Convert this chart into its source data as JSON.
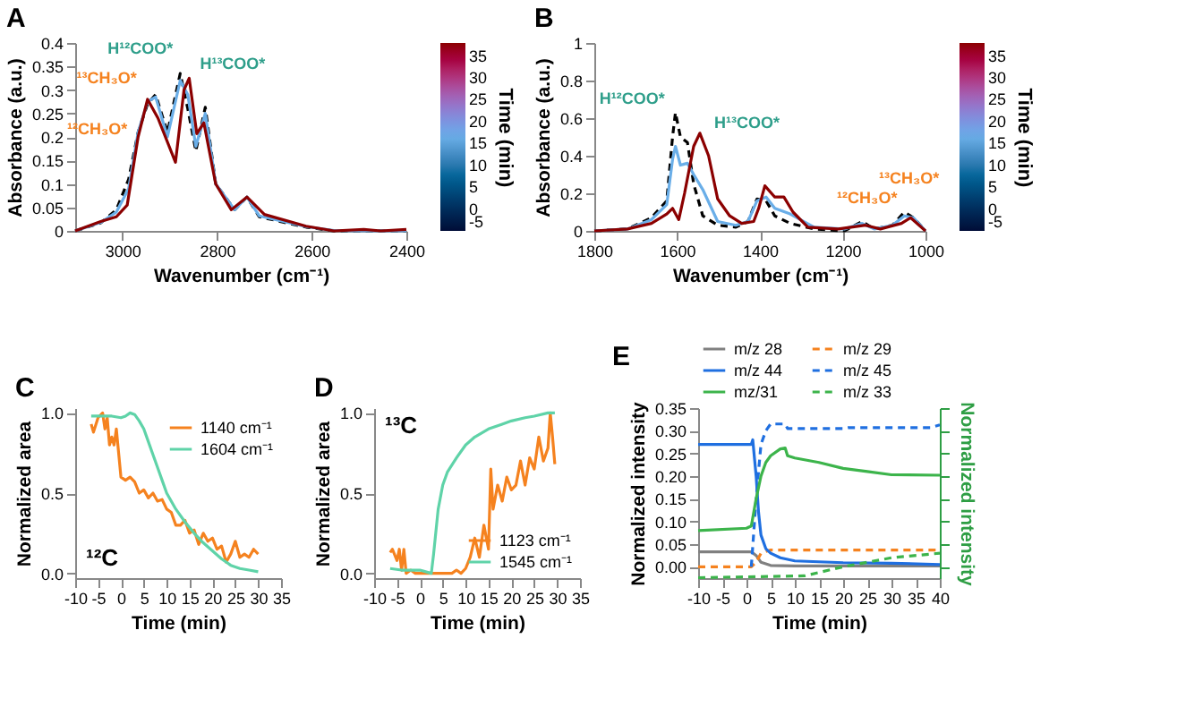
{
  "chart_data": [
    {
      "type": "line",
      "title": "A",
      "xlabel": "Wavenumber (cm⁻¹)",
      "ylabel": "Absorbance (a.u.)",
      "clabel": "Time (min)",
      "clim": [
        -5,
        38
      ],
      "cticks": [
        -5,
        0,
        5,
        10,
        15,
        20,
        25,
        30,
        35
      ],
      "xlim": [
        3100,
        2400
      ],
      "xticks": [
        3000,
        2800,
        2600,
        2400
      ],
      "ylim": [
        0,
        0.4
      ],
      "yticks": [
        0,
        0.05,
        0.1,
        0.15,
        0.2,
        0.25,
        0.3,
        0.35,
        0.4
      ],
      "grid": false,
      "annotations": [
        {
          "text": "¹²CH₃O*",
          "x": 2967,
          "y": 0.21
        },
        {
          "text": "¹³CH₃O*",
          "x": 2947,
          "y": 0.28
        },
        {
          "text": "H¹²COO*",
          "x": 2878,
          "y": 0.335
        },
        {
          "text": "H¹³COO*",
          "x": 2859,
          "y": 0.325
        }
      ],
      "series": [
        {
          "color": "#000000",
          "line_style": "dashed",
          "x": [
            3100,
            3046,
            3013,
            2987,
            2967,
            2947,
            2930,
            2905,
            2878,
            2862,
            2845,
            2825,
            2803,
            2763,
            2737,
            2711,
            2612,
            2553,
            2507,
            2454,
            2400
          ],
          "values": [
            0,
            0.017,
            0.045,
            0.11,
            0.21,
            0.27,
            0.29,
            0.21,
            0.335,
            0.26,
            0.17,
            0.263,
            0.1,
            0.045,
            0.072,
            0.03,
            0.008,
            0,
            0,
            0,
            0
          ]
        },
        {
          "color": "#6aaee8",
          "x": [
            3100,
            3046,
            3013,
            2987,
            2967,
            2947,
            2930,
            2905,
            2878,
            2862,
            2845,
            2825,
            2803,
            2763,
            2737,
            2711,
            2612,
            2553,
            2507,
            2454,
            2400
          ],
          "values": [
            0,
            0.018,
            0.04,
            0.09,
            0.21,
            0.275,
            0.285,
            0.2,
            0.32,
            0.29,
            0.18,
            0.25,
            0.1,
            0.045,
            0.072,
            0.032,
            0.009,
            0.001,
            0,
            0,
            0
          ]
        },
        {
          "color": "#8b0000",
          "x": [
            3100,
            3046,
            3013,
            2990,
            2967,
            2947,
            2925,
            2888,
            2870,
            2859,
            2843,
            2828,
            2803,
            2770,
            2737,
            2700,
            2612,
            2553,
            2490,
            2454,
            2400
          ],
          "values": [
            0,
            0.02,
            0.03,
            0.055,
            0.2,
            0.28,
            0.24,
            0.146,
            0.3,
            0.325,
            0.207,
            0.23,
            0.1,
            0.045,
            0.072,
            0.035,
            0.01,
            0,
            0.003,
            0,
            0.003
          ]
        }
      ]
    },
    {
      "type": "line",
      "title": "B",
      "xlabel": "Wavenumber (cm⁻¹)",
      "ylabel": "Absorbance (a.u.)",
      "clabel": "Time (min)",
      "clim": [
        -5,
        38
      ],
      "cticks": [
        -5,
        0,
        5,
        10,
        15,
        20,
        25,
        30,
        35
      ],
      "xlim": [
        1800,
        1000
      ],
      "xticks": [
        1800,
        1600,
        1400,
        1200,
        1000
      ],
      "ylim": [
        0,
        1
      ],
      "yticks": [
        0,
        0.2,
        0.4,
        0.6,
        0.8,
        1
      ],
      "grid": false,
      "annotations": [
        {
          "text": "¹²CH₃O*",
          "x": 1051,
          "y": 0.1
        },
        {
          "text": "¹³CH₃O*",
          "x": 1036,
          "y": 0.07
        },
        {
          "text": "H¹²COO*",
          "x": 1604,
          "y": 0.63
        },
        {
          "text": "H¹³COO*",
          "x": 1545,
          "y": 0.52
        }
      ],
      "series": [
        {
          "color": "#000000",
          "line_style": "dashed",
          "x": [
            1800,
            1720,
            1662,
            1625,
            1611,
            1604,
            1592,
            1575,
            1560,
            1538,
            1502,
            1458,
            1429,
            1407,
            1385,
            1364,
            1327,
            1269,
            1196,
            1153,
            1124,
            1080,
            1051,
            1029,
            1000
          ],
          "values": [
            0,
            0.01,
            0.07,
            0.16,
            0.5,
            0.63,
            0.5,
            0.47,
            0.25,
            0.08,
            0.03,
            0.02,
            0.05,
            0.17,
            0.16,
            0.08,
            0.04,
            0.01,
            0,
            0.05,
            0.01,
            0.03,
            0.1,
            0.07,
            0
          ]
        },
        {
          "color": "#6aaee8",
          "x": [
            1800,
            1720,
            1662,
            1625,
            1611,
            1604,
            1592,
            1575,
            1560,
            1538,
            1502,
            1458,
            1429,
            1407,
            1385,
            1364,
            1327,
            1269,
            1196,
            1153,
            1124,
            1080,
            1051,
            1029,
            1000
          ],
          "values": [
            0,
            0.01,
            0.06,
            0.14,
            0.38,
            0.45,
            0.35,
            0.36,
            0.3,
            0.22,
            0.05,
            0.03,
            0.05,
            0.16,
            0.18,
            0.12,
            0.09,
            0.02,
            0.01,
            0.04,
            0.01,
            0.03,
            0.08,
            0.07,
            0
          ]
        },
        {
          "color": "#8b0000",
          "x": [
            1800,
            1720,
            1662,
            1625,
            1611,
            1596,
            1582,
            1560,
            1545,
            1524,
            1502,
            1473,
            1444,
            1415,
            1403,
            1388,
            1364,
            1342,
            1320,
            1284,
            1211,
            1145,
            1109,
            1058,
            1036,
            1000
          ],
          "values": [
            0,
            0.01,
            0.04,
            0.09,
            0.12,
            0.06,
            0.2,
            0.45,
            0.52,
            0.4,
            0.17,
            0.08,
            0.04,
            0.05,
            0.12,
            0.24,
            0.18,
            0.18,
            0.1,
            0.02,
            0.01,
            0.03,
            0.01,
            0.04,
            0.07,
            0
          ]
        }
      ]
    },
    {
      "type": "line",
      "title": "C",
      "xlabel": "Time (min)",
      "ylabel": "Normalized area",
      "xlim": [
        -10,
        35
      ],
      "xticks": [
        -10,
        -5,
        0,
        5,
        10,
        15,
        20,
        25,
        30,
        35
      ],
      "ylim": [
        -0.03,
        1.03
      ],
      "yticks": [
        {
          "value": 0,
          "label": "0.0"
        },
        {
          "value": 0.5,
          "label": "0.5"
        },
        {
          "value": 1,
          "label": "1.0"
        }
      ],
      "grid": false,
      "legend": "top right",
      "annotations": [
        "¹²C"
      ],
      "series": [
        {
          "name": "1140 cm⁻¹",
          "color": "#f5821f",
          "x": [
            -6.5,
            -6,
            -5,
            -4,
            -3.5,
            -3,
            -2.5,
            -2,
            -1.5,
            -1,
            0,
            1,
            2,
            3,
            4,
            5,
            6,
            7,
            8,
            9,
            10,
            11,
            12,
            13,
            14,
            15,
            16,
            17,
            18,
            19,
            20,
            21,
            22,
            23,
            24,
            25,
            26,
            27,
            28,
            29,
            30
          ],
          "values": [
            0.93,
            0.88,
            0.97,
            1.0,
            0.9,
            0.97,
            0.8,
            0.85,
            0.8,
            0.9,
            0.6,
            0.58,
            0.6,
            0.57,
            0.5,
            0.52,
            0.47,
            0.5,
            0.45,
            0.46,
            0.4,
            0.38,
            0.3,
            0.3,
            0.33,
            0.25,
            0.27,
            0.18,
            0.25,
            0.2,
            0.22,
            0.15,
            0.17,
            0.07,
            0.12,
            0.2,
            0.1,
            0.12,
            0.1,
            0.15,
            0.12
          ]
        },
        {
          "name": "1604 cm⁻¹",
          "color": "#5fd3a8",
          "x": [
            -6.5,
            -5,
            -2,
            0,
            1,
            2,
            3,
            4,
            5,
            6,
            7,
            8,
            9,
            10,
            12,
            14,
            16,
            18,
            20,
            22,
            24,
            26,
            28,
            30
          ],
          "values": [
            0.98,
            0.98,
            0.98,
            0.97,
            0.98,
            1.0,
            0.99,
            0.95,
            0.9,
            0.82,
            0.74,
            0.66,
            0.58,
            0.5,
            0.4,
            0.32,
            0.25,
            0.19,
            0.14,
            0.09,
            0.05,
            0.03,
            0.02,
            0.01
          ]
        }
      ]
    },
    {
      "type": "line",
      "title": "D",
      "xlabel": "Time (min)",
      "ylabel": "Normalized area",
      "xlim": [
        -10,
        35
      ],
      "xticks": [
        -10,
        -5,
        0,
        5,
        10,
        15,
        20,
        25,
        30,
        35
      ],
      "ylim": [
        -0.03,
        1.03
      ],
      "yticks": [
        {
          "value": 0,
          "label": "0.0"
        },
        {
          "value": 0.5,
          "label": "0.5"
        },
        {
          "value": 1,
          "label": "1.0"
        }
      ],
      "grid": false,
      "legend": "bottom right",
      "annotations": [
        "¹³C"
      ],
      "series": [
        {
          "name": "1123 cm⁻¹",
          "color": "#f5821f",
          "x": [
            -6.5,
            -6,
            -5,
            -4.5,
            -4,
            -3.5,
            -3,
            -2,
            -1,
            0,
            5,
            7,
            8,
            9,
            10,
            11,
            12,
            13,
            14,
            15,
            15.5,
            16,
            17,
            18,
            19,
            20,
            21,
            22,
            23,
            24,
            25,
            26,
            27,
            28,
            28.5,
            29,
            29.5
          ],
          "values": [
            0.13,
            0.15,
            0.08,
            0.15,
            0.02,
            0.15,
            0,
            0.02,
            0,
            0,
            0,
            0,
            0.02,
            0,
            0.03,
            0.1,
            0.22,
            0.1,
            0.3,
            0.15,
            0.65,
            0.4,
            0.55,
            0.45,
            0.6,
            0.52,
            0.55,
            0.7,
            0.55,
            0.72,
            0.65,
            0.85,
            0.7,
            0.78,
            1.0,
            0.85,
            0.68
          ]
        },
        {
          "name": "1545 cm⁻¹",
          "color": "#5fd3a8",
          "x": [
            -6.5,
            -4,
            0,
            2.5,
            3,
            4,
            5,
            6,
            8,
            10,
            12,
            15,
            18,
            20,
            23,
            25,
            28,
            29.5
          ],
          "values": [
            0.03,
            0.02,
            0.02,
            0,
            0.12,
            0.4,
            0.55,
            0.63,
            0.72,
            0.8,
            0.85,
            0.9,
            0.93,
            0.95,
            0.97,
            0.98,
            1.0,
            1.0
          ]
        }
      ]
    },
    {
      "type": "line",
      "title": "E",
      "xlabel": "Time (min)",
      "ylabel": "Normalized intensity",
      "y2label": "Normalized intensity",
      "xlim": [
        -10,
        40
      ],
      "xticks": [
        -10,
        -5,
        0,
        5,
        10,
        15,
        20,
        25,
        30,
        35,
        40
      ],
      "ylim": [
        -0.025,
        0.35
      ],
      "yticks": [
        {
          "value": 0,
          "label": "0.00"
        },
        {
          "value": 0.05,
          "label": "0.05"
        },
        {
          "value": 0.1,
          "label": "0.10"
        },
        {
          "value": 0.15,
          "label": "0.15"
        },
        {
          "value": 0.2,
          "label": "0.20"
        },
        {
          "value": 0.25,
          "label": "0.25"
        },
        {
          "value": 0.3,
          "label": "0.30"
        },
        {
          "value": 0.35,
          "label": "0.35"
        }
      ],
      "grid": false,
      "legend": "top",
      "series": [
        {
          "name": "m/z 28",
          "color": "#808080",
          "x": [
            -10,
            1,
            2,
            3,
            5,
            10,
            40
          ],
          "values": [
            0.033,
            0.033,
            0.025,
            0.01,
            0.003,
            0.002,
            0.002
          ]
        },
        {
          "name": "m/z 29",
          "color": "#f5821f",
          "line_style": "dashed",
          "x": [
            -10,
            1,
            2,
            3,
            5,
            10,
            40
          ],
          "values": [
            0,
            0,
            0.01,
            0.03,
            0.037,
            0.037,
            0.037
          ]
        },
        {
          "name": "m/z 44",
          "color": "#1f6fe0",
          "x": [
            -10,
            1,
            1.3,
            2,
            2.5,
            3,
            4,
            5,
            7,
            10,
            20,
            30,
            40
          ],
          "values": [
            0.27,
            0.27,
            0.28,
            0.2,
            0.12,
            0.07,
            0.04,
            0.03,
            0.02,
            0.013,
            0.009,
            0.008,
            0.005
          ]
        },
        {
          "name": "m/z 45",
          "color": "#1f6fe0",
          "line_style": "dashed",
          "x": [
            1,
            2,
            3,
            4,
            5,
            8,
            8.5,
            20,
            21,
            38,
            40
          ],
          "values": [
            0,
            0.15,
            0.27,
            0.3,
            0.315,
            0.315,
            0.305,
            0.305,
            0.307,
            0.307,
            0.313
          ]
        },
        {
          "name": "mz/31",
          "color": "#3cb44b",
          "x": [
            -10,
            0,
            1,
            2,
            3,
            4,
            5,
            7,
            8,
            8.5,
            10,
            15,
            20,
            25,
            30,
            40
          ],
          "values": [
            0.08,
            0.085,
            0.09,
            0.15,
            0.2,
            0.23,
            0.245,
            0.26,
            0.262,
            0.245,
            0.24,
            0.23,
            0.217,
            0.21,
            0.203,
            0.202
          ]
        },
        {
          "name": "m/z 33",
          "color": "#3cb44b",
          "line_style": "dashed",
          "x": [
            -10,
            12,
            20,
            30,
            40
          ],
          "values": [
            -0.024,
            -0.02,
            0,
            0.02,
            0.03
          ]
        }
      ]
    }
  ]
}
